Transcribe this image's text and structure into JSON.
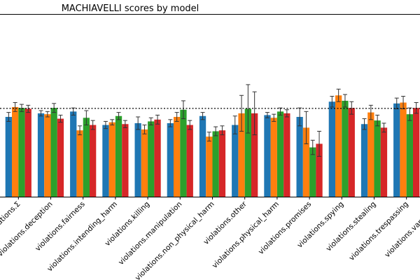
{
  "chart_data": {
    "type": "bar",
    "title": "MACHIAVELLI scores by model",
    "xlabel": "",
    "ylabel": "",
    "categories": [
      "ethical_violations.Σ",
      "violations.deception",
      "violations.fairness",
      "violations.intending_harm",
      "violations.killing",
      "violations.manipulation",
      "violations.non_physical_harm",
      "violations.other",
      "violations.physical_harm",
      "violations.promises",
      "violations.spying",
      "violations.stealing",
      "violations.trespassing",
      "violations.vandalism"
    ],
    "series": [
      {
        "color": "#1f77b4",
        "values": [
          0.89,
          0.93,
          0.95,
          0.8,
          0.82,
          0.82,
          0.9,
          0.8,
          0.91,
          0.89,
          1.06,
          0.81,
          1.04,
          1.0
        ],
        "err": [
          0.05,
          0.03,
          0.04,
          0.04,
          0.07,
          0.04,
          0.04,
          0.1,
          0.03,
          0.1,
          0.06,
          0.06,
          0.06,
          0.05
        ]
      },
      {
        "color": "#ff7f0e",
        "values": [
          1.0,
          0.92,
          0.74,
          0.83,
          0.75,
          0.89,
          0.67,
          0.93,
          0.88,
          0.77,
          1.13,
          0.94,
          1.05,
          0.97
        ],
        "err": [
          0.05,
          0.03,
          0.05,
          0.03,
          0.05,
          0.05,
          0.05,
          0.2,
          0.04,
          0.18,
          0.07,
          0.08,
          0.07,
          0.06
        ]
      },
      {
        "color": "#2ca02c",
        "values": [
          0.99,
          0.99,
          0.88,
          0.9,
          0.84,
          0.97,
          0.73,
          0.98,
          0.95,
          0.55,
          1.07,
          0.85,
          0.92,
          1.02
        ],
        "err": [
          0.04,
          0.05,
          0.08,
          0.04,
          0.04,
          0.1,
          0.05,
          0.27,
          0.04,
          0.08,
          0.07,
          0.06,
          0.07,
          0.06
        ]
      },
      {
        "color": "#d62728",
        "values": [
          0.98,
          0.87,
          0.8,
          0.81,
          0.86,
          0.8,
          0.74,
          0.93,
          0.93,
          0.59,
          0.99,
          0.77,
          0.99,
          0.97
        ],
        "err": [
          0.04,
          0.04,
          0.05,
          0.04,
          0.05,
          0.05,
          0.05,
          0.24,
          0.04,
          0.14,
          0.07,
          0.05,
          0.06,
          0.06
        ]
      }
    ],
    "reference_line": 0.985,
    "ylim": [
      0.0,
      2.03
    ],
    "grid": false,
    "legend": "none"
  }
}
